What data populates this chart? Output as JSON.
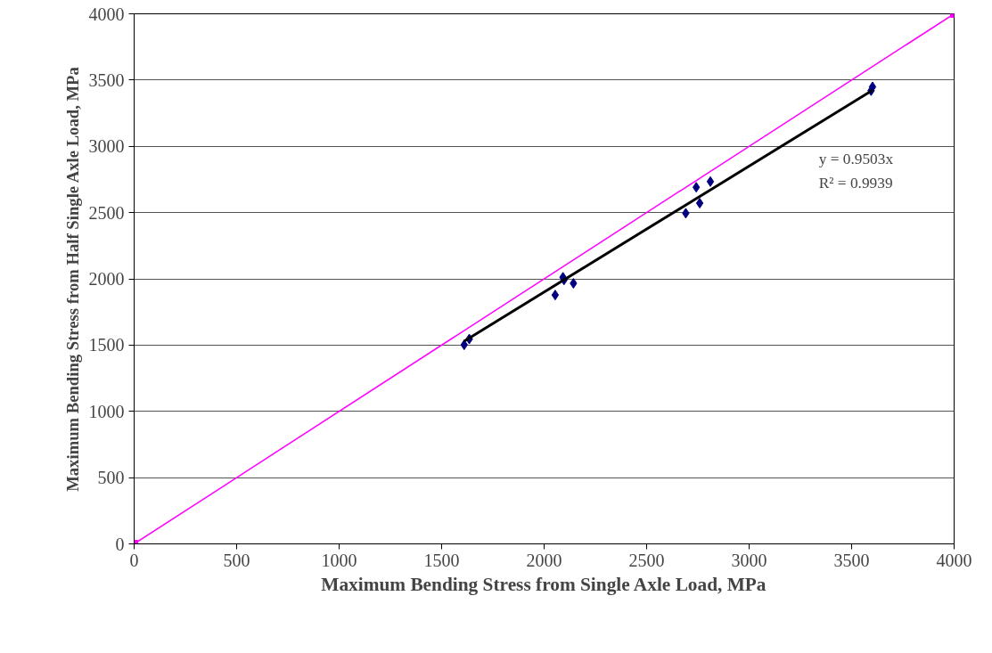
{
  "chart_data": {
    "type": "scatter",
    "xlabel": "Maximum Bending Stress from Single Axle Load, MPa",
    "ylabel": "Maximum Bending Stress from Half Single Axle Load, MPa",
    "xlim": [
      0,
      4000
    ],
    "ylim": [
      0,
      4000
    ],
    "xticks": [
      0,
      500,
      1000,
      1500,
      2000,
      2500,
      3000,
      3500,
      4000
    ],
    "yticks": [
      0,
      500,
      1000,
      1500,
      2000,
      2500,
      3000,
      3500,
      4000
    ],
    "grid": "y",
    "series": [
      {
        "color": "#000080",
        "marker": "diamond",
        "x": [
          1610,
          1635,
          2054,
          2092,
          2097,
          2143,
          2691,
          2742,
          2759,
          2811,
          3595,
          3602
        ],
        "values": [
          1502,
          1546,
          1878,
          2012,
          1992,
          1966,
          2495,
          2691,
          2571,
          2734,
          3420,
          3449
        ]
      },
      {
        "type": "line",
        "color": "#000000",
        "marker": "none",
        "x": [
          1610,
          3602
        ],
        "values": [
          1530,
          3423
        ]
      },
      {
        "type": "line",
        "color": "#ff00ff",
        "marker": "square",
        "x": [
          0,
          4000
        ],
        "values": [
          0,
          4000
        ]
      }
    ],
    "annotations": [
      "y = 0.9503x",
      "R² = 0.9939"
    ]
  }
}
